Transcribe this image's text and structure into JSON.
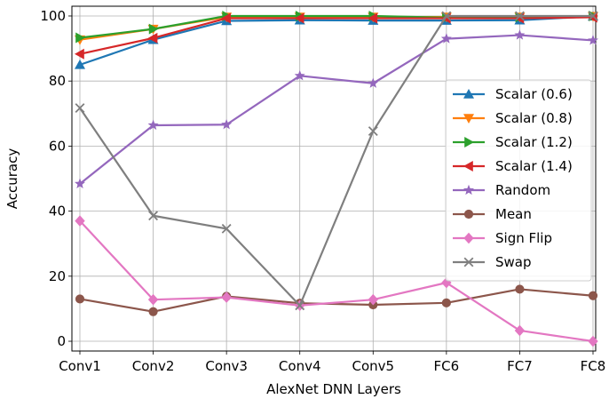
{
  "chart_data": {
    "type": "line",
    "xlabel": "AlexNet DNN Layers",
    "ylabel": "Accuracy",
    "categories": [
      "Conv1",
      "Conv2",
      "Conv3",
      "Conv4",
      "Conv5",
      "FC6",
      "FC7",
      "FC8"
    ],
    "ylim": [
      -3,
      103
    ],
    "yticks": [
      0,
      20,
      40,
      60,
      80,
      100
    ],
    "grid": true,
    "legend_position": "right",
    "series": [
      {
        "name": "Scalar (0.6)",
        "color": "#1f77b4",
        "marker": "triangle-up",
        "values": [
          85,
          92.7,
          98.5,
          98.7,
          98.6,
          98.6,
          98.7,
          99.9
        ]
      },
      {
        "name": "Scalar (0.8)",
        "color": "#ff7f0e",
        "marker": "triangle-down",
        "values": [
          92.7,
          96,
          99.7,
          99.7,
          99.7,
          99.7,
          99.7,
          99.9
        ]
      },
      {
        "name": "Scalar (1.2)",
        "color": "#2ca02c",
        "marker": "triangle-right",
        "values": [
          93.3,
          96,
          100,
          100,
          100,
          99.5,
          99.7,
          100
        ]
      },
      {
        "name": "Scalar (1.4)",
        "color": "#d62728",
        "marker": "triangle-left",
        "values": [
          88.3,
          93.2,
          99.3,
          99.3,
          99.3,
          99.3,
          99.3,
          99.6
        ]
      },
      {
        "name": "Random",
        "color": "#9467bd",
        "marker": "star",
        "values": [
          48.4,
          66.4,
          66.6,
          81.6,
          79.3,
          93,
          94.1,
          92.5
        ]
      },
      {
        "name": "Mean",
        "color": "#8c564b",
        "marker": "circle",
        "values": [
          13,
          9.1,
          13.8,
          11.7,
          11.2,
          11.8,
          16,
          14
        ]
      },
      {
        "name": "Sign Flip",
        "color": "#e377c2",
        "marker": "diamond",
        "values": [
          37,
          12.8,
          13.5,
          11,
          12.8,
          18,
          3.3,
          0
        ]
      },
      {
        "name": "Swap",
        "color": "#7f7f7f",
        "marker": "x",
        "values": [
          71.7,
          38.6,
          34.6,
          11,
          64.6,
          100,
          100,
          100
        ]
      }
    ]
  }
}
